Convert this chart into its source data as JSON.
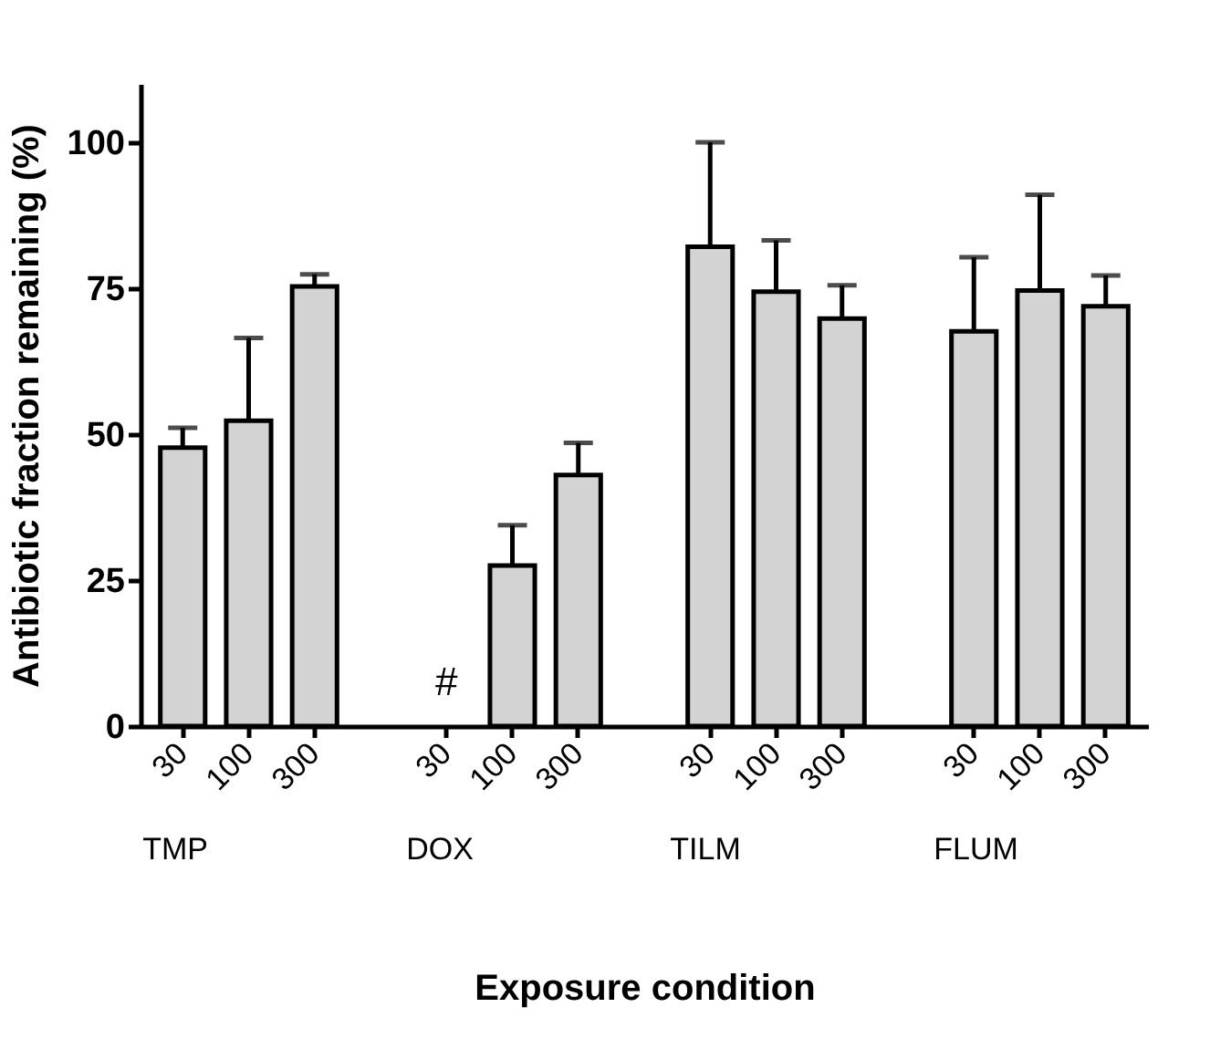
{
  "chart_data": {
    "type": "bar",
    "xlabel": "Exposure condition",
    "ylabel": "Antibiotic fraction remaining (%)",
    "categories": [
      "30",
      "100",
      "300",
      null,
      "30",
      "100",
      "300",
      null,
      "30",
      "100",
      "300",
      null,
      "30",
      "100",
      "300"
    ],
    "series": [
      {
        "color": "#d3d3d3",
        "values": [
          47.7,
          52.3,
          75.3,
          null,
          null,
          27.5,
          43.0,
          null,
          82.1,
          74.4,
          69.8,
          null,
          67.6,
          74.6,
          71.9
        ],
        "errors": [
          [
            47.7,
            51.1
          ],
          [
            52.3,
            66.5
          ],
          [
            75.3,
            77.4
          ],
          null,
          null,
          [
            27.5,
            34.4
          ],
          [
            43.0,
            48.5
          ],
          null,
          [
            82.1,
            100
          ],
          [
            74.4,
            83.2
          ],
          [
            69.8,
            75.5
          ],
          null,
          [
            67.6,
            80.3
          ],
          [
            74.6,
            91.0
          ],
          [
            71.9,
            77.2
          ]
        ]
      }
    ],
    "annotations": [
      "TMP",
      "DOX",
      "TILM",
      "FLUM",
      "#"
    ],
    "ylim": [
      0,
      110
    ],
    "yticks": [
      0,
      25,
      50,
      75,
      100
    ],
    "grid": false
  }
}
